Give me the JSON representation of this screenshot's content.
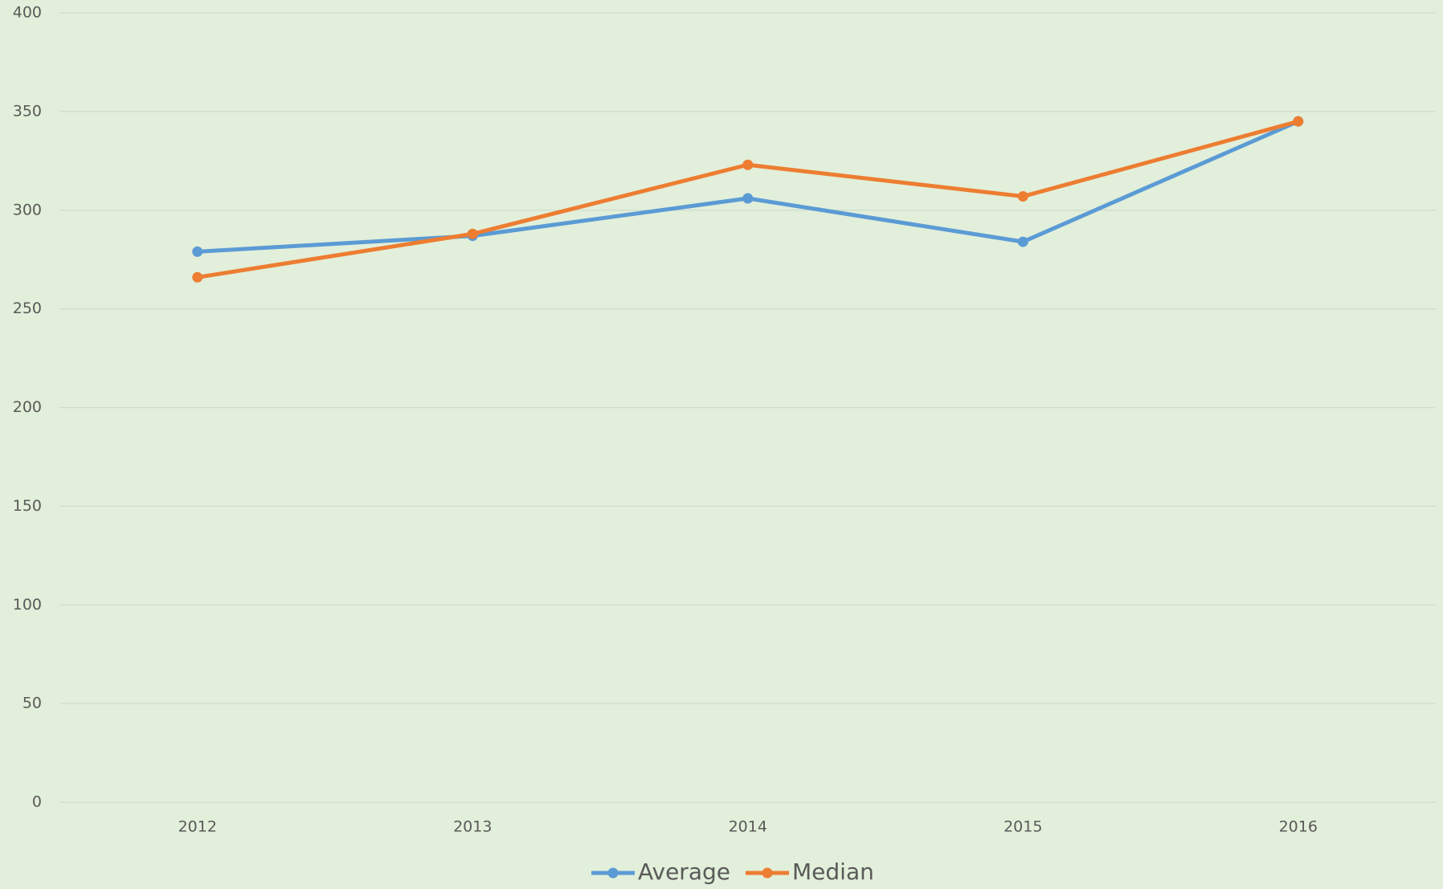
{
  "chart_data": {
    "type": "line",
    "categories": [
      "2012",
      "2013",
      "2014",
      "2015",
      "2016"
    ],
    "series": [
      {
        "name": "Average",
        "color": "#5b9bd5",
        "values": [
          279,
          287,
          306,
          284,
          345
        ]
      },
      {
        "name": "Median",
        "color": "#ed7d31",
        "values": [
          266,
          288,
          323,
          307,
          345
        ]
      }
    ],
    "ylim": [
      0,
      400
    ],
    "yticks": [
      0,
      50,
      100,
      150,
      200,
      250,
      300,
      350,
      400
    ],
    "grid": true,
    "legend": "bottom"
  }
}
